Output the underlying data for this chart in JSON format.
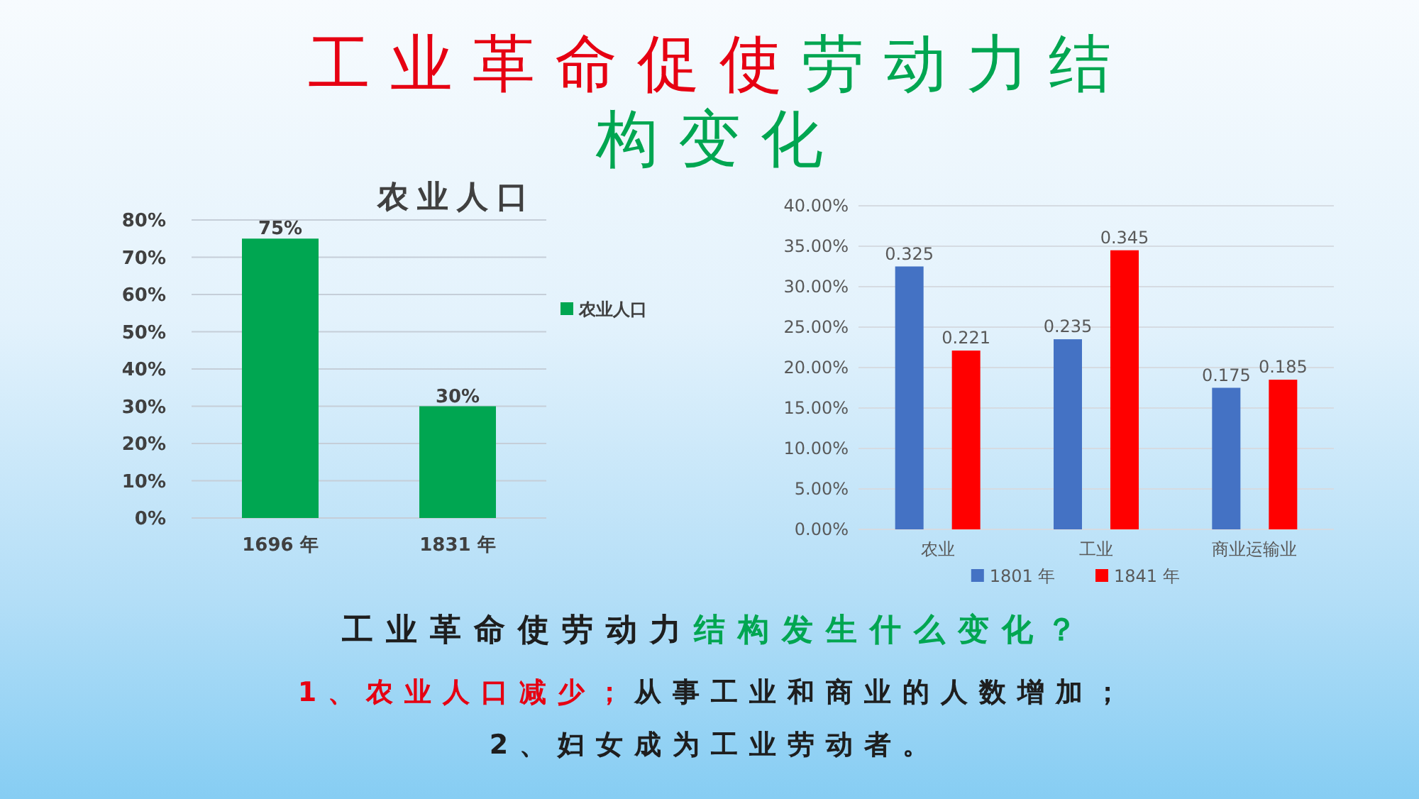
{
  "chart_data": [
    {
      "type": "other",
      "title": "工业革命促使劳动力结构变化"
    },
    {
      "type": "bar",
      "title": "农业人口",
      "categories": [
        "1696 年",
        "1831 年"
      ],
      "series": [
        {
          "name": "农业人口",
          "color": "#00a651",
          "values": [
            75,
            30
          ],
          "value_labels": [
            "75%",
            "30%"
          ]
        }
      ],
      "ylim": [
        0,
        80
      ],
      "yticks": [
        {
          "value": 0,
          "label": "0%"
        },
        {
          "value": 10,
          "label": "10%"
        },
        {
          "value": 20,
          "label": "20%"
        },
        {
          "value": 30,
          "label": "30%"
        },
        {
          "value": 40,
          "label": "40%"
        },
        {
          "value": 50,
          "label": "50%"
        },
        {
          "value": 60,
          "label": "60%"
        },
        {
          "value": 70,
          "label": "70%"
        },
        {
          "value": 80,
          "label": "80%"
        }
      ],
      "grid": "y",
      "legend": "right"
    },
    {
      "type": "bar",
      "categories": [
        "农业",
        "工业",
        "商业运输业"
      ],
      "series": [
        {
          "name": "1801 年",
          "color": "#4472c4",
          "values": [
            0.325,
            0.235,
            0.175
          ]
        },
        {
          "name": "1841 年",
          "color": "#ff0000",
          "values": [
            0.221,
            0.345,
            0.185
          ]
        }
      ],
      "ylim": [
        0,
        0.4
      ],
      "yticks": [
        {
          "value": 0,
          "label": "0.00%"
        },
        {
          "value": 0.05,
          "label": "5.00%"
        },
        {
          "value": 0.1,
          "label": "10.00%"
        },
        {
          "value": 0.15,
          "label": "15.00%"
        },
        {
          "value": 0.2,
          "label": "20.00%"
        },
        {
          "value": 0.25,
          "label": "25.00%"
        },
        {
          "value": 0.3,
          "label": "30.00%"
        },
        {
          "value": 0.35,
          "label": "35.00%"
        },
        {
          "value": 0.4,
          "label": "40.00%"
        }
      ],
      "data_labels": true,
      "grid": "y",
      "legend": "bottom"
    },
    {
      "type": "other",
      "annotations": [
        "工业革命使劳动力结构发生什么变化？",
        "1、农业人口减少；从事工业和商业的人数增加；",
        "2、妇女成为工业劳动者。"
      ]
    }
  ]
}
